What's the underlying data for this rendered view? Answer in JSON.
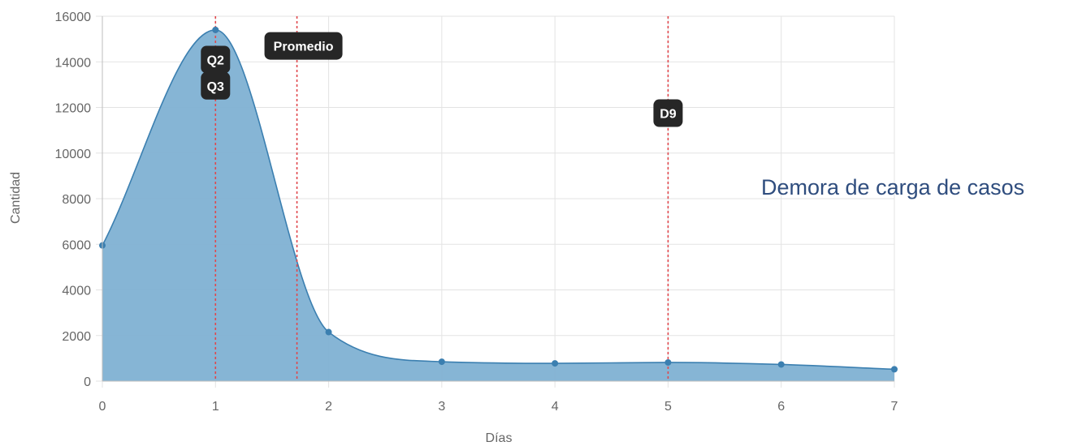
{
  "side_title": "Demora de carga de casos",
  "chart_data": {
    "type": "area",
    "xlabel": "Días",
    "ylabel": "Cantidad",
    "xlim": [
      0,
      7
    ],
    "ylim": [
      0,
      16000
    ],
    "x_ticks": [
      0,
      1,
      2,
      3,
      4,
      5,
      6,
      7
    ],
    "y_ticks": [
      0,
      2000,
      4000,
      6000,
      8000,
      10000,
      12000,
      14000,
      16000
    ],
    "grid": true,
    "series": [
      {
        "x": [
          0,
          1,
          2,
          3,
          4,
          5,
          6,
          7
        ],
        "values": [
          5950,
          15400,
          2150,
          850,
          780,
          820,
          730,
          520
        ],
        "fill_color": "#7fb1d3",
        "line_color": "#3b7fb0"
      }
    ],
    "annotations": [
      {
        "label": "Q2",
        "x": 1,
        "y": 14100
      },
      {
        "label": "Q3",
        "x": 1,
        "y": 12950
      },
      {
        "label": "Promedio",
        "x": 1.72,
        "y": 14700
      },
      {
        "label": "D9",
        "x": 5,
        "y": 11750
      }
    ],
    "reference_line_color": "#e0474c"
  }
}
